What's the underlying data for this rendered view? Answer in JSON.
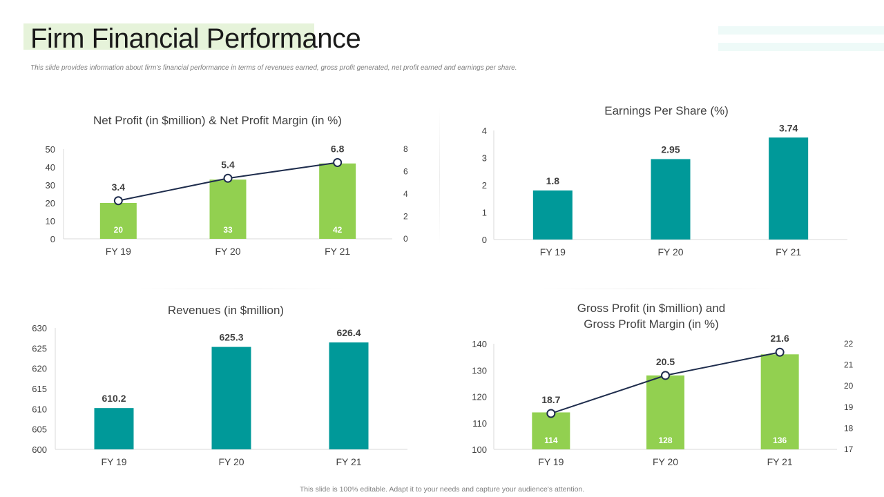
{
  "page": {
    "title": "Firm Financial Performance",
    "subtitle": "This slide provides information about firm's financial  performance in terms of revenues earned, gross profit generated, net profit earned and earnings per share.",
    "footer": "This slide is 100% editable. Adapt it to your needs and capture your audience's attention."
  },
  "colors": {
    "green": "#92d050",
    "teal": "#009999",
    "line": "#1f2d4d",
    "axis": "#d9d9d9",
    "title_accent": "#e6f3da"
  },
  "chart_data": [
    {
      "id": "net-profit",
      "type": "bar",
      "title": [
        "Net Profit (in $million) & Net Profit Margin (in %)"
      ],
      "categories": [
        "FY 19",
        "FY 20",
        "FY 21"
      ],
      "series": [
        {
          "values": [
            20,
            33,
            42
          ],
          "kind": "bar",
          "axis": "left",
          "color": "#92d050",
          "labels": "inside"
        },
        {
          "values": [
            3.4,
            5.4,
            6.8
          ],
          "kind": "line",
          "axis": "right",
          "color": "#1f2d4d",
          "labels": "above"
        }
      ],
      "yticks": [
        0,
        10,
        20,
        30,
        40,
        50
      ],
      "ylim": [
        0,
        50
      ],
      "y2ticks": [
        0,
        2,
        4,
        6,
        8
      ],
      "y2lim": [
        0,
        8
      ],
      "grid": false
    },
    {
      "id": "eps",
      "type": "bar",
      "title": [
        "Earnings Per Share (%)"
      ],
      "categories": [
        "FY 19",
        "FY 20",
        "FY 21"
      ],
      "series": [
        {
          "values": [
            1.8,
            2.95,
            3.74
          ],
          "kind": "bar",
          "axis": "left",
          "color": "#009999",
          "labels": "above"
        }
      ],
      "yticks": [
        0,
        1,
        2,
        3,
        4
      ],
      "ylim": [
        0,
        4
      ],
      "grid": false
    },
    {
      "id": "revenues",
      "type": "bar",
      "title": [
        "Revenues (in $million)"
      ],
      "categories": [
        "FY 19",
        "FY 20",
        "FY 21"
      ],
      "series": [
        {
          "values": [
            610.2,
            625.3,
            626.4
          ],
          "kind": "bar",
          "axis": "left",
          "color": "#009999",
          "labels": "above"
        }
      ],
      "yticks": [
        600,
        605,
        610,
        615,
        620,
        625,
        630
      ],
      "ylim": [
        600,
        630
      ],
      "grid": false
    },
    {
      "id": "gross-profit",
      "type": "bar",
      "title": [
        "Gross Profit (in $million) and",
        "Gross Profit Margin (in %)"
      ],
      "categories": [
        "FY 19",
        "FY 20",
        "FY 21"
      ],
      "series": [
        {
          "values": [
            114,
            128,
            136
          ],
          "kind": "bar",
          "axis": "left",
          "color": "#92d050",
          "labels": "inside"
        },
        {
          "values": [
            18.7,
            20.5,
            21.6
          ],
          "kind": "line",
          "axis": "right",
          "color": "#1f2d4d",
          "labels": "above"
        }
      ],
      "yticks": [
        100,
        110,
        120,
        130,
        140
      ],
      "ylim": [
        100,
        140
      ],
      "y2ticks": [
        17,
        18,
        19,
        20,
        21,
        22
      ],
      "y2lim": [
        17,
        22
      ],
      "grid": false
    }
  ]
}
